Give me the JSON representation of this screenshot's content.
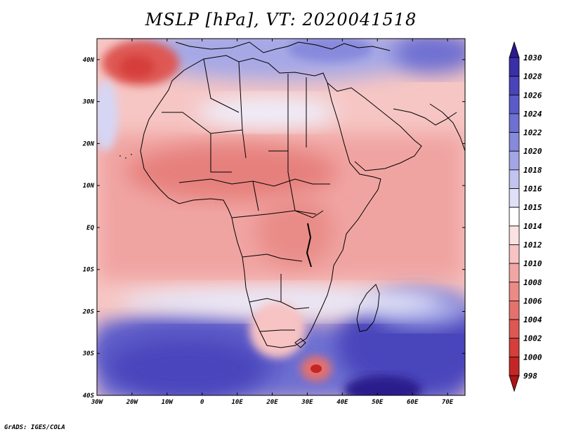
{
  "title": "MSLP [hPa], VT: 2020041518",
  "credit": "GrADS: IGES/COLA",
  "map": {
    "variable": "MSLP",
    "units": "hPa",
    "valid_time": "2020041518",
    "lon_range": [
      -30,
      75
    ],
    "lat_range": [
      -40,
      45
    ],
    "lat_labels": [
      "40N",
      "30N",
      "20N",
      "10N",
      "EQ",
      "10S",
      "20S",
      "30S",
      "40S"
    ],
    "lon_labels": [
      "30W",
      "20W",
      "10W",
      "0",
      "10E",
      "20E",
      "30E",
      "40E",
      "50E",
      "60E",
      "70E"
    ]
  },
  "colorbar": {
    "labels": [
      "1030",
      "1028",
      "1026",
      "1024",
      "1022",
      "1020",
      "1018",
      "1016",
      "1015",
      "1014",
      "1012",
      "1010",
      "1008",
      "1006",
      "1004",
      "1002",
      "1000",
      "998"
    ],
    "colors": [
      "#2a1a8c",
      "#3a2fa8",
      "#4a44bb",
      "#5b5ac8",
      "#6e70d2",
      "#8789dc",
      "#a3a6e6",
      "#c2c4f0",
      "#e0e0f8",
      "#ffffff",
      "#fbe2e2",
      "#f7c3c3",
      "#f2a6a4",
      "#ec8a86",
      "#e5716d",
      "#de5853",
      "#d53e3a",
      "#c42626",
      "#ad1414"
    ]
  }
}
